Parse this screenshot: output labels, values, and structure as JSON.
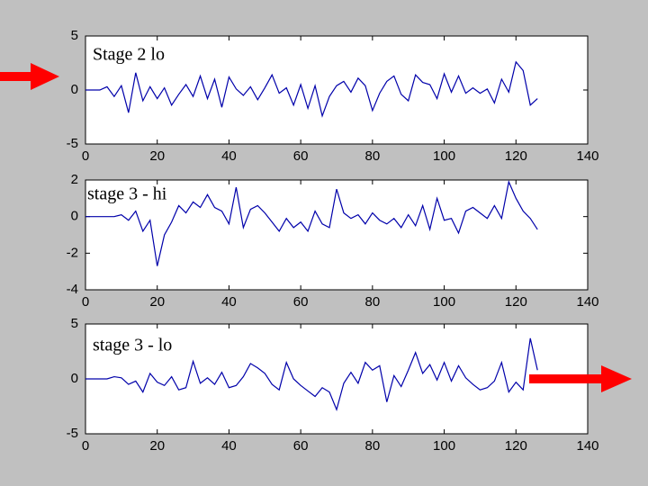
{
  "chart_data": [
    {
      "type": "line",
      "annotation": "Stage 2 lo",
      "x": [
        0,
        2,
        4,
        6,
        8,
        10,
        12,
        14,
        16,
        18,
        20,
        22,
        24,
        26,
        28,
        30,
        32,
        34,
        36,
        38,
        40,
        42,
        44,
        46,
        48,
        50,
        52,
        54,
        56,
        58,
        60,
        62,
        64,
        66,
        68,
        70,
        72,
        74,
        76,
        78,
        80,
        82,
        84,
        86,
        88,
        90,
        92,
        94,
        96,
        98,
        100,
        102,
        104,
        106,
        108,
        110,
        112,
        114,
        116,
        118,
        120,
        122,
        124,
        126
      ],
      "series": [
        {
          "color": "#0000aa",
          "values": [
            0,
            0,
            0,
            0.3,
            -0.6,
            0.4,
            -2.1,
            1.6,
            -1.0,
            0.3,
            -0.8,
            0.2,
            -1.4,
            -0.4,
            0.5,
            -0.6,
            1.3,
            -0.8,
            1.0,
            -1.6,
            1.2,
            0.1,
            -0.5,
            0.3,
            -0.9,
            0.2,
            1.4,
            -0.3,
            0.2,
            -1.4,
            0.5,
            -1.7,
            0.4,
            -2.4,
            -0.6,
            0.4,
            0.8,
            -0.2,
            1.1,
            0.4,
            -1.9,
            -0.3,
            0.8,
            1.3,
            -0.4,
            -1.0,
            1.4,
            0.7,
            0.5,
            -0.8,
            1.5,
            -0.2,
            1.3,
            -0.3,
            0.2,
            -0.3,
            0.1,
            -1.2,
            1.0,
            -0.2,
            2.6,
            1.8,
            -1.4,
            -0.8
          ]
        }
      ],
      "xlim": [
        0,
        140
      ],
      "xticks": [
        0,
        20,
        40,
        60,
        80,
        100,
        120,
        140
      ],
      "ylim": [
        -5,
        5
      ],
      "yticks": [
        -5,
        0,
        5
      ]
    },
    {
      "type": "line",
      "annotation": "stage 3 - hi",
      "x": [
        0,
        2,
        4,
        6,
        8,
        10,
        12,
        14,
        16,
        18,
        20,
        22,
        24,
        26,
        28,
        30,
        32,
        34,
        36,
        38,
        40,
        42,
        44,
        46,
        48,
        50,
        52,
        54,
        56,
        58,
        60,
        62,
        64,
        66,
        68,
        70,
        72,
        74,
        76,
        78,
        80,
        82,
        84,
        86,
        88,
        90,
        92,
        94,
        96,
        98,
        100,
        102,
        104,
        106,
        108,
        110,
        112,
        114,
        116,
        118,
        120,
        122,
        124,
        126
      ],
      "series": [
        {
          "color": "#0000aa",
          "values": [
            0,
            0,
            0,
            0,
            0,
            0.1,
            -0.2,
            0.3,
            -0.8,
            -0.2,
            -2.7,
            -1.0,
            -0.3,
            0.6,
            0.2,
            0.8,
            0.5,
            1.2,
            0.5,
            0.3,
            -0.4,
            1.6,
            -0.6,
            0.4,
            0.6,
            0.2,
            -0.3,
            -0.8,
            -0.1,
            -0.6,
            -0.3,
            -0.8,
            0.3,
            -0.4,
            -0.6,
            1.5,
            0.2,
            -0.1,
            0.1,
            -0.4,
            0.2,
            -0.2,
            -0.4,
            -0.1,
            -0.6,
            0.1,
            -0.5,
            0.6,
            -0.7,
            1.0,
            -0.2,
            -0.1,
            -0.9,
            0.3,
            0.5,
            0.2,
            -0.1,
            0.6,
            -0.1,
            1.9,
            1.0,
            0.3,
            -0.1,
            -0.7
          ]
        }
      ],
      "xlim": [
        0,
        140
      ],
      "xticks": [
        0,
        20,
        40,
        60,
        80,
        100,
        120,
        140
      ],
      "ylim": [
        -4,
        2
      ],
      "yticks": [
        -4,
        -2,
        0,
        2
      ]
    },
    {
      "type": "line",
      "annotation": "stage 3 - lo",
      "x": [
        0,
        2,
        4,
        6,
        8,
        10,
        12,
        14,
        16,
        18,
        20,
        22,
        24,
        26,
        28,
        30,
        32,
        34,
        36,
        38,
        40,
        42,
        44,
        46,
        48,
        50,
        52,
        54,
        56,
        58,
        60,
        62,
        64,
        66,
        68,
        70,
        72,
        74,
        76,
        78,
        80,
        82,
        84,
        86,
        88,
        90,
        92,
        94,
        96,
        98,
        100,
        102,
        104,
        106,
        108,
        110,
        112,
        114,
        116,
        118,
        120,
        122,
        124,
        126
      ],
      "series": [
        {
          "color": "#0000aa",
          "values": [
            0,
            0,
            0,
            0,
            0.2,
            0.1,
            -0.5,
            -0.2,
            -1.2,
            0.5,
            -0.3,
            -0.6,
            0.2,
            -1.0,
            -0.8,
            1.6,
            -0.4,
            0.1,
            -0.5,
            0.6,
            -0.8,
            -0.6,
            0.2,
            1.4,
            1.0,
            0.5,
            -0.5,
            -1.0,
            1.5,
            0,
            -0.6,
            -1.1,
            -1.6,
            -0.8,
            -1.2,
            -2.8,
            -0.4,
            0.6,
            -0.4,
            1.5,
            0.8,
            1.2,
            -2.1,
            0.3,
            -0.7,
            0.8,
            2.4,
            0.5,
            1.3,
            -0.1,
            1.5,
            -0.2,
            1.2,
            0.1,
            -0.5,
            -1.0,
            -0.8,
            -0.2,
            1.5,
            -1.2,
            -0.3,
            -1.0,
            3.7,
            0.8
          ]
        }
      ],
      "xlim": [
        0,
        140
      ],
      "xticks": [
        0,
        20,
        40,
        60,
        80,
        100,
        120,
        140
      ],
      "ylim": [
        -5,
        5
      ],
      "yticks": [
        -5,
        0,
        5
      ]
    }
  ]
}
